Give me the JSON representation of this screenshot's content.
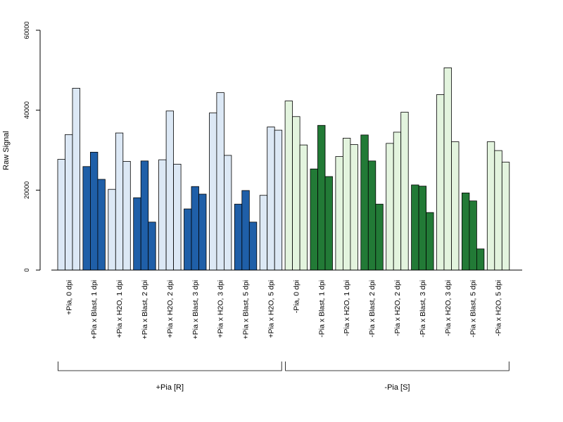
{
  "chart_data": {
    "type": "bar",
    "ylabel": "Raw Signal",
    "ylim": [
      0,
      60000
    ],
    "yticks": [
      0,
      20000,
      40000,
      60000
    ],
    "grid": false,
    "categories": [
      "+Pia, 0 dpi",
      "+Pia x Blast, 1 dpi",
      "+Pia x H2O, 1 dpi",
      "+Pia x Blast, 2 dpi",
      "+Pia x H2O, 2 dpi",
      "+Pia x Blast, 3 dpi",
      "+Pia x H2O, 3 dpi",
      "+Pia x Blast, 5 dpi",
      "+Pia x H2O, 5 dpi",
      "-Pia, 0 dpi",
      "-Pia x Blast, 1 dpi",
      "-Pia x H2O, 1 dpi",
      "-Pia x Blast, 2 dpi",
      "-Pia x H2O, 2 dpi",
      "-Pia x Blast, 3 dpi",
      "-Pia x H2O, 3 dpi",
      "-Pia x Blast, 5 dpi",
      "-Pia x H2O, 5 dpi"
    ],
    "values": [
      [
        27700,
        33900,
        45500
      ],
      [
        25900,
        29500,
        22700
      ],
      [
        20200,
        34300,
        27200
      ],
      [
        18100,
        27300,
        12000
      ],
      [
        27600,
        39800,
        26500
      ],
      [
        15300,
        20900,
        19000
      ],
      [
        39300,
        44400,
        28700
      ],
      [
        16500,
        19900,
        12000
      ],
      [
        18700,
        35800,
        35000
      ],
      [
        42300,
        38400,
        31300
      ],
      [
        25300,
        36200,
        23400
      ],
      [
        28400,
        33000,
        31400
      ],
      [
        33800,
        27300,
        16500
      ],
      [
        31700,
        34500,
        39500
      ],
      [
        21300,
        21000,
        14400
      ],
      [
        43900,
        50600,
        32100
      ],
      [
        19300,
        17300,
        5300
      ],
      [
        32100,
        29900,
        27000
      ]
    ],
    "bar_colors": [
      "#dce8f5",
      "#1f5fa8",
      "#dce8f5",
      "#1f5fa8",
      "#dce8f5",
      "#1f5fa8",
      "#dce8f5",
      "#1f5fa8",
      "#dce8f5",
      "#e3f4de",
      "#227a36",
      "#e3f4de",
      "#227a36",
      "#e3f4de",
      "#227a36",
      "#e3f4de",
      "#227a36",
      "#e3f4de"
    ],
    "groups": [
      {
        "label": "+Pia [R]",
        "from": 0,
        "to": 8
      },
      {
        "label": "-Pia [S]",
        "from": 9,
        "to": 17
      }
    ]
  }
}
